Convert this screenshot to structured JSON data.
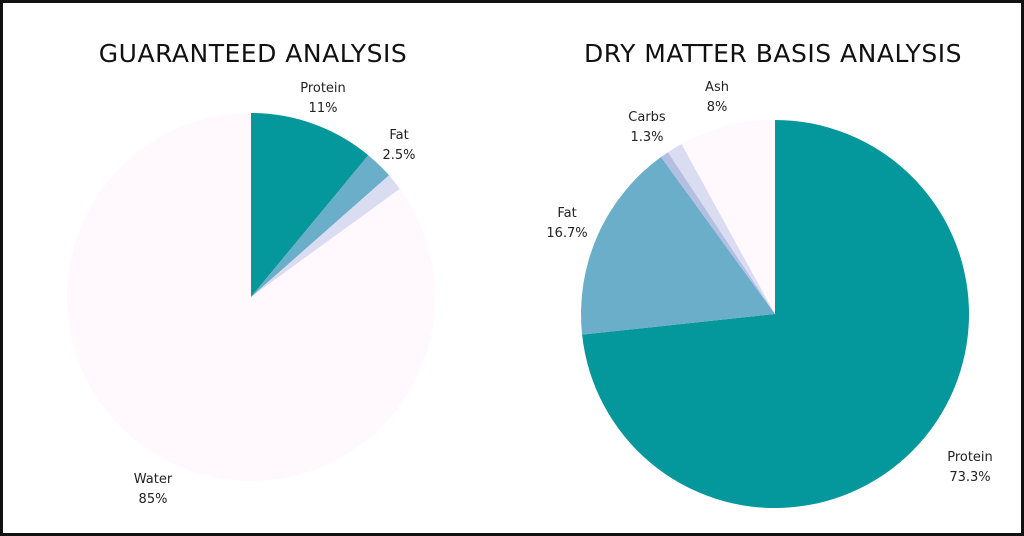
{
  "chart_data": [
    {
      "type": "pie",
      "title": "GUARANTEED ANALYSIS",
      "slices": [
        {
          "label": "Protein",
          "value_label": "11%",
          "value": 11,
          "color": "#04979b"
        },
        {
          "label": "Fat",
          "value_label": "2.5%",
          "value": 2.5,
          "color": "#6aaec9"
        },
        {
          "label": "",
          "value_label": "",
          "value": 1.5,
          "color": "#dadcf2"
        },
        {
          "label": "Water",
          "value_label": "85%",
          "value": 85,
          "color": "#fff8fd"
        }
      ]
    },
    {
      "type": "pie",
      "title": "DRY MATTER BASIS ANALYSIS",
      "slices": [
        {
          "label": "Protein",
          "value_label": "73.3%",
          "value": 73.3,
          "color": "#04979b"
        },
        {
          "label": "Fat",
          "value_label": "16.7%",
          "value": 16.7,
          "color": "#6aaec9"
        },
        {
          "label": "",
          "value_label": "",
          "value": 0.7,
          "color": "#b4bfe2"
        },
        {
          "label": "Carbs",
          "value_label": "1.3%",
          "value": 1.3,
          "color": "#dadcf2"
        },
        {
          "label": "Ash",
          "value_label": "8%",
          "value": 8,
          "color": "#fff8fd"
        }
      ]
    }
  ]
}
